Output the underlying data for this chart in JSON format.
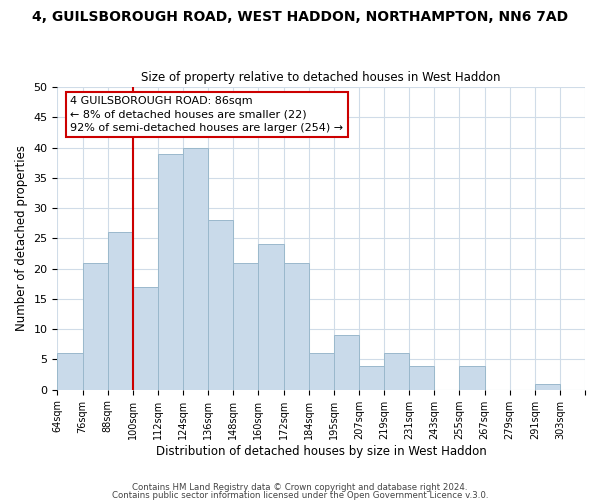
{
  "title1": "4, GUILSBOROUGH ROAD, WEST HADDON, NORTHAMPTON, NN6 7AD",
  "title2": "Size of property relative to detached houses in West Haddon",
  "xlabel": "Distribution of detached houses by size in West Haddon",
  "ylabel": "Number of detached properties",
  "bin_labels": [
    "64sqm",
    "76sqm",
    "88sqm",
    "100sqm",
    "112sqm",
    "124sqm",
    "136sqm",
    "148sqm",
    "160sqm",
    "172sqm",
    "184sqm",
    "195sqm",
    "207sqm",
    "219sqm",
    "231sqm",
    "243sqm",
    "255sqm",
    "267sqm",
    "279sqm",
    "291sqm",
    "303sqm"
  ],
  "bar_heights": [
    6,
    21,
    26,
    17,
    39,
    40,
    28,
    21,
    24,
    21,
    6,
    9,
    4,
    6,
    4,
    0,
    4,
    0,
    0,
    1,
    0
  ],
  "bar_color": "#c9daea",
  "bar_edgecolor": "#9ab8cc",
  "vline_x_index": 2,
  "vline_color": "#cc0000",
  "ylim": [
    0,
    50
  ],
  "yticks": [
    0,
    5,
    10,
    15,
    20,
    25,
    30,
    35,
    40,
    45,
    50
  ],
  "annotation_box_text": "4 GUILSBOROUGH ROAD: 86sqm\n← 8% of detached houses are smaller (22)\n92% of semi-detached houses are larger (254) →",
  "annotation_box_color": "#ffffff",
  "annotation_box_edgecolor": "#cc0000",
  "footer1": "Contains HM Land Registry data © Crown copyright and database right 2024.",
  "footer2": "Contains public sector information licensed under the Open Government Licence v.3.0.",
  "background_color": "#ffffff",
  "grid_color": "#d0dce8"
}
